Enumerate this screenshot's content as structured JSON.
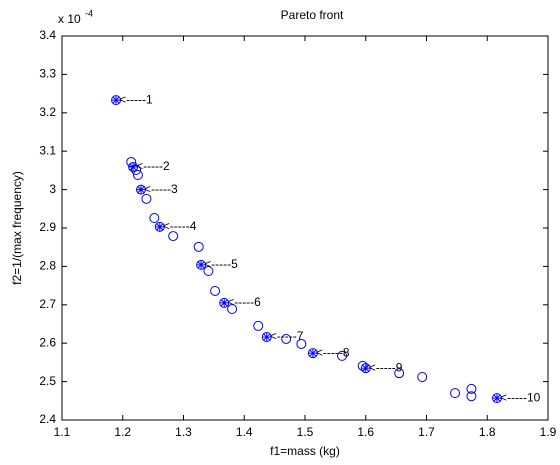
{
  "chart_data": {
    "type": "scatter",
    "title": "Pareto front",
    "x_label": "f1=mass (kg)",
    "y_label": "f2=1/(max frequency)",
    "y_multiplier": {
      "base": "x 10",
      "exponent": "-4"
    },
    "xlim": [
      1.1,
      1.9
    ],
    "ylim": [
      2.4,
      3.4
    ],
    "xticks": [
      1.1,
      1.2,
      1.3,
      1.4,
      1.5,
      1.6,
      1.7,
      1.8,
      1.9
    ],
    "yticks": [
      2.4,
      2.5,
      2.6,
      2.7,
      2.8,
      2.9,
      {
        "value": 3.0,
        "label": "3"
      },
      3.1,
      3.2,
      3.3,
      3.4
    ],
    "color": "#0000ff",
    "points": {
      "x": [
        1.214,
        1.222,
        1.225,
        1.239,
        1.252,
        1.283,
        1.325,
        1.341,
        1.352,
        1.38,
        1.423,
        1.469,
        1.494,
        1.561,
        1.595,
        1.655,
        1.693,
        1.747,
        1.774,
        1.774
      ],
      "y": [
        3.072,
        3.051,
        3.038,
        2.976,
        2.926,
        2.879,
        2.851,
        2.788,
        2.736,
        2.689,
        2.645,
        2.611,
        2.598,
        2.567,
        2.541,
        2.522,
        2.512,
        2.47,
        2.481,
        2.462
      ]
    },
    "labeled": {
      "x": [
        1.189,
        1.217,
        1.23,
        1.261,
        1.329,
        1.367,
        1.437,
        1.513,
        1.6,
        1.816
      ],
      "y": [
        3.233,
        3.059,
        3.0,
        2.903,
        2.804,
        2.705,
        2.616,
        2.574,
        2.535,
        2.457
      ],
      "labels": [
        "<-----1",
        "<-----2",
        "<-----3",
        "<-----4",
        "<-----5",
        "<-----6",
        "<-----7",
        "<-----8",
        "<-----9",
        "<-----10"
      ]
    }
  }
}
